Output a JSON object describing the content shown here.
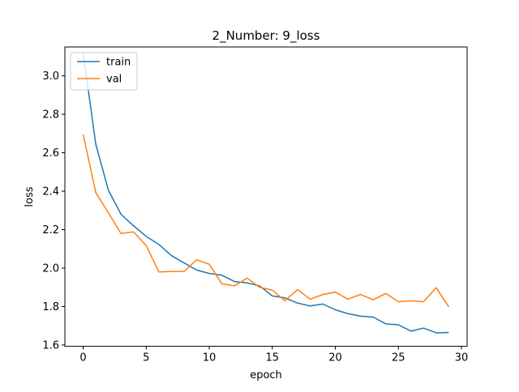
{
  "chart_data": {
    "type": "line",
    "title": "2_Number: 9_loss",
    "xlabel": "epoch",
    "ylabel": "loss",
    "xlim": [
      -1.45,
      30.45
    ],
    "ylim": [
      1.593,
      3.15
    ],
    "xticks": [
      0,
      5,
      10,
      15,
      20,
      25,
      30
    ],
    "xtick_labels": [
      "0",
      "5",
      "10",
      "15",
      "20",
      "25",
      "30"
    ],
    "yticks": [
      1.6,
      1.8,
      2.0,
      2.2,
      2.4,
      2.6,
      2.8,
      3.0
    ],
    "ytick_labels": [
      "1.6",
      "1.8",
      "2.0",
      "2.2",
      "2.4",
      "2.6",
      "2.8",
      "3.0"
    ],
    "grid": false,
    "legend_position": "top-left",
    "x": [
      0,
      1,
      2,
      3,
      4,
      5,
      6,
      7,
      8,
      9,
      10,
      11,
      12,
      13,
      14,
      15,
      16,
      17,
      18,
      19,
      20,
      21,
      22,
      23,
      24,
      25,
      26,
      27,
      28,
      29
    ],
    "series": [
      {
        "name": "train",
        "color": "#1f77b4",
        "values": [
          3.12,
          2.645,
          2.405,
          2.28,
          2.22,
          2.165,
          2.123,
          2.065,
          2.027,
          1.99,
          1.972,
          1.963,
          1.93,
          1.923,
          1.907,
          1.855,
          1.845,
          1.818,
          1.803,
          1.813,
          1.783,
          1.763,
          1.75,
          1.745,
          1.71,
          1.705,
          1.672,
          1.688,
          1.663,
          1.665
        ]
      },
      {
        "name": "val",
        "color": "#ff7f0e",
        "values": [
          2.695,
          2.393,
          2.287,
          2.18,
          2.188,
          2.117,
          1.98,
          1.982,
          1.982,
          2.043,
          2.02,
          1.918,
          1.908,
          1.948,
          1.9,
          1.885,
          1.83,
          1.888,
          1.838,
          1.862,
          1.875,
          1.838,
          1.863,
          1.835,
          1.868,
          1.825,
          1.83,
          1.825,
          1.898,
          1.798
        ]
      }
    ]
  }
}
